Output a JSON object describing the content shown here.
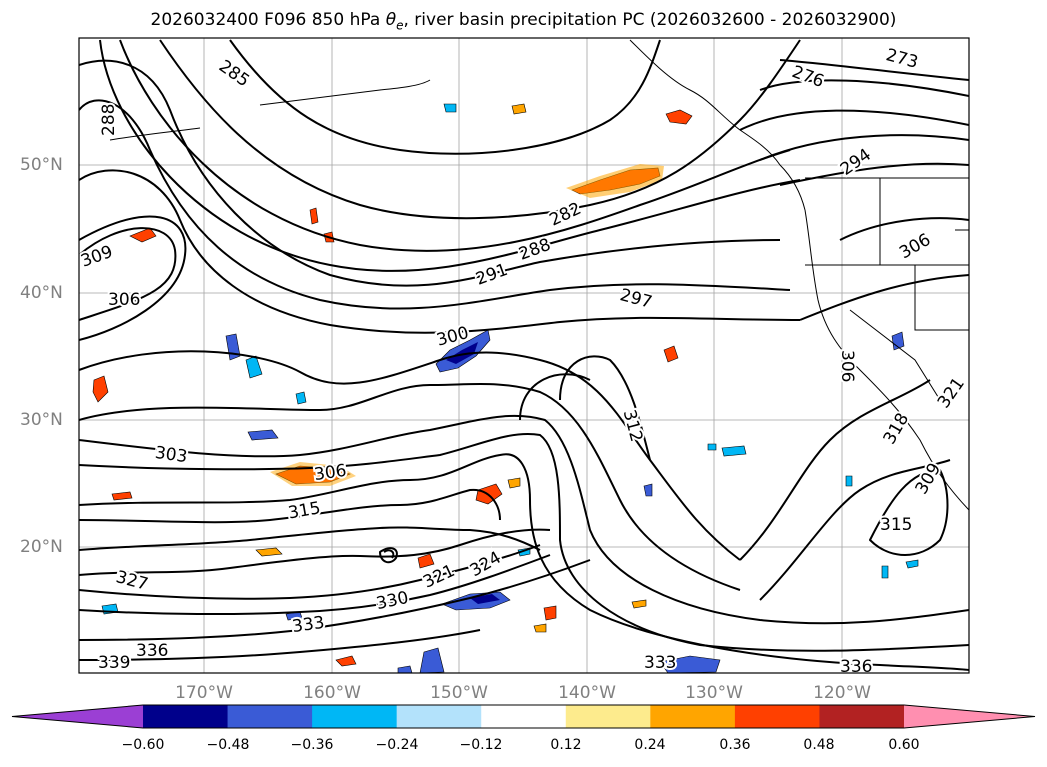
{
  "title_main": "2026032400 F096 850 hPa ",
  "title_symbol": "θ",
  "title_sub": "e",
  "title_rest": ", river basin precipitation PC (2026032600 - 2026032900)",
  "lat_ticks": [
    "50°N",
    "40°N",
    "30°N",
    "20°N"
  ],
  "lon_ticks": [
    "170°W",
    "160°W",
    "150°W",
    "140°W",
    "130°W",
    "120°W"
  ],
  "contour_labels": [
    "285",
    "288",
    "276",
    "273",
    "294",
    "282",
    "288",
    "291",
    "297",
    "306",
    "309",
    "306",
    "300",
    "303",
    "306",
    "315",
    "312",
    "306",
    "321",
    "327",
    "330",
    "321",
    "324",
    "333",
    "336",
    "339",
    "333",
    "336",
    "315",
    "318",
    "309"
  ],
  "colorbar": {
    "labels": [
      "−0.60",
      "−0.48",
      "−0.36",
      "−0.24",
      "−0.12",
      "0.12",
      "0.24",
      "0.36",
      "0.48",
      "0.60"
    ],
    "colors": [
      "#9b3fd4",
      "#00008b",
      "#3a5bd6",
      "#00b7f5",
      "#b3e2fb",
      "#ffffff",
      "#fdeb8d",
      "#ffa500",
      "#ff4000",
      "#b22222",
      "#ff8fb0"
    ]
  },
  "colors": {
    "contour": "#000000",
    "coast": "#000000",
    "grid": "#8c8c8c",
    "tick_text": "#808080"
  }
}
